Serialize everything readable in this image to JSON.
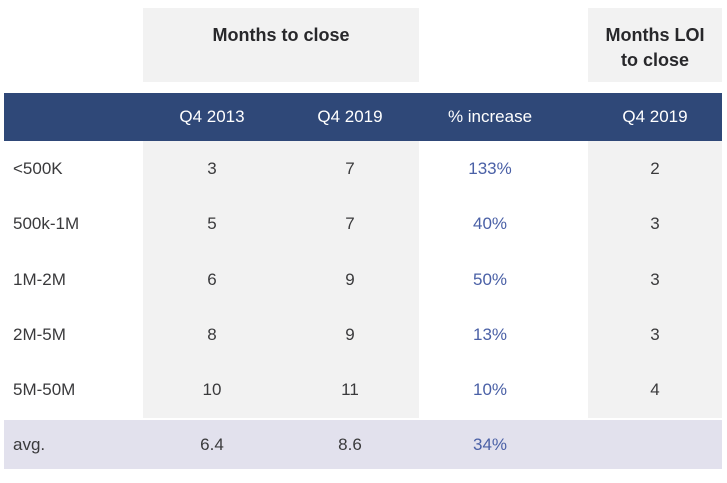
{
  "colors": {
    "header_navy": "#2f4878",
    "stripe_gray": "#f2f2f2",
    "avg_lavender": "#e2e1ed",
    "pct_blue": "#4a60a6",
    "text_dark": "#3a3a3c",
    "text_darkest": "#28282b"
  },
  "chart_data": {
    "type": "table",
    "column_groups": [
      {
        "label": "Months to close",
        "lines": [
          "Months to close"
        ],
        "spans": [
          "Q4 2013",
          "Q4 2019"
        ]
      },
      {
        "label": "Months LOI to close",
        "lines": [
          "Months LOI",
          "to close"
        ],
        "spans": [
          "Q4 2019"
        ]
      }
    ],
    "columns": [
      "",
      "Q4 2013",
      "Q4 2019",
      "% increase",
      "Q4 2019"
    ],
    "rows": [
      [
        "<500K",
        3,
        7,
        "133%",
        2
      ],
      [
        "500k-1M",
        5,
        7,
        "40%",
        3
      ],
      [
        "1M-2M",
        6,
        9,
        "50%",
        3
      ],
      [
        "2M-5M",
        8,
        9,
        "13%",
        3
      ],
      [
        "5M-50M",
        10,
        11,
        "10%",
        4
      ]
    ],
    "footer_row": [
      "avg.",
      6.4,
      8.6,
      "34%",
      ""
    ]
  }
}
